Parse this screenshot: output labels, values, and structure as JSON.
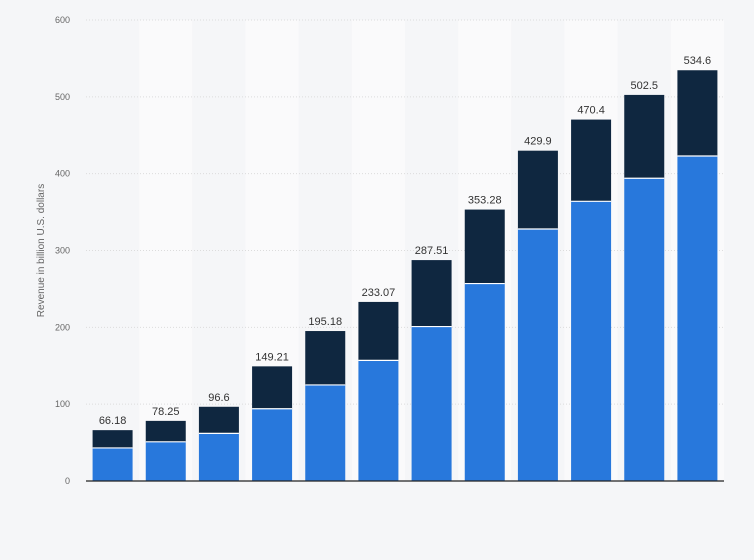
{
  "chart_data": {
    "type": "bar",
    "stacked": true,
    "title": "",
    "xlabel": "",
    "ylabel": "Revenue in billion U.S. dollars",
    "ylim": [
      0,
      600
    ],
    "yticks": [
      0,
      100,
      200,
      300,
      400,
      500,
      600
    ],
    "grid": true,
    "legend": "none",
    "categories": [
      "",
      "",
      "",
      "",
      "",
      "",
      "",
      "",
      "",
      "",
      "",
      ""
    ],
    "series": [
      {
        "color": "#2878dc",
        "values": [
          43,
          51,
          62,
          94,
          125,
          157,
          201,
          257,
          328,
          364,
          394,
          423
        ]
      },
      {
        "color": "#0f2740",
        "values": [
          23.18,
          27.25,
          34.6,
          55.21,
          70.18,
          76.07,
          86.51,
          96.28,
          101.9,
          106.4,
          108.5,
          111.6
        ]
      }
    ],
    "totals": [
      "66.18",
      "78.25",
      "96.6",
      "149.21",
      "195.18",
      "233.07",
      "287.51",
      "353.28",
      "429.9",
      "470.4",
      "502.5",
      "534.6"
    ]
  }
}
